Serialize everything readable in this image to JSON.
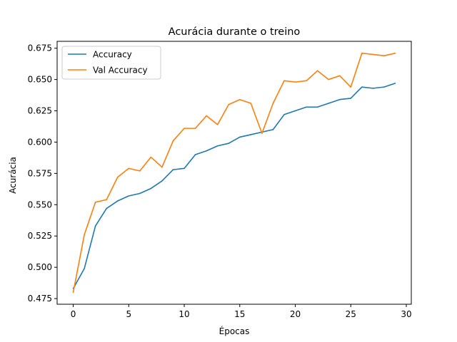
{
  "chart_data": {
    "type": "line",
    "title": "Acurácia durante o treino",
    "xlabel": "Épocas",
    "ylabel": "Acurácia",
    "xlim": [
      -1.45,
      30.45
    ],
    "ylim": [
      0.4705,
      0.6805
    ],
    "x_ticks": [
      0,
      5,
      10,
      15,
      20,
      25,
      30
    ],
    "y_ticks": [
      0.475,
      0.5,
      0.525,
      0.55,
      0.575,
      0.6,
      0.625,
      0.65,
      0.675
    ],
    "y_tick_labels": [
      "0.475",
      "0.500",
      "0.525",
      "0.550",
      "0.575",
      "0.600",
      "0.625",
      "0.650",
      "0.675"
    ],
    "grid": false,
    "legend_position": "top-left",
    "x": [
      0,
      1,
      2,
      3,
      4,
      5,
      6,
      7,
      8,
      9,
      10,
      11,
      12,
      13,
      14,
      15,
      16,
      17,
      18,
      19,
      20,
      21,
      22,
      23,
      24,
      25,
      26,
      27,
      28,
      29
    ],
    "series": [
      {
        "name": "Accuracy",
        "color": "#1f77b4",
        "values": [
          0.483,
          0.499,
          0.533,
          0.547,
          0.553,
          0.557,
          0.559,
          0.563,
          0.569,
          0.578,
          0.579,
          0.59,
          0.593,
          0.597,
          0.599,
          0.604,
          0.606,
          0.608,
          0.61,
          0.622,
          0.625,
          0.628,
          0.628,
          0.631,
          0.634,
          0.635,
          0.644,
          0.643,
          0.644,
          0.647
        ]
      },
      {
        "name": "Val Accuracy",
        "color": "#ff7f0e",
        "values": [
          0.48,
          0.526,
          0.552,
          0.554,
          0.572,
          0.579,
          0.577,
          0.588,
          0.58,
          0.601,
          0.611,
          0.611,
          0.621,
          0.614,
          0.63,
          0.634,
          0.631,
          0.607,
          0.631,
          0.649,
          0.648,
          0.649,
          0.657,
          0.65,
          0.653,
          0.644,
          0.671,
          0.67,
          0.669,
          0.671
        ]
      }
    ]
  }
}
